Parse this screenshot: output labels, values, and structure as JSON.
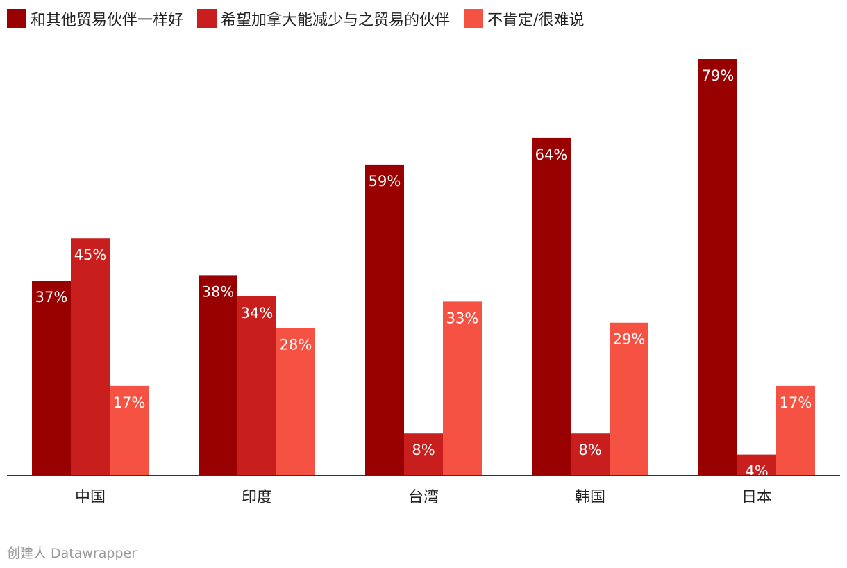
{
  "legend": [
    {
      "label": "和其他贸易伙伴一样好",
      "color": "#990000"
    },
    {
      "label": "希望加拿大能减少与之贸易的伙伴",
      "color": "#c81e1e"
    },
    {
      "label": "不肯定/很难说",
      "color": "#f55243"
    }
  ],
  "footer": {
    "credit": "创建人 Datawrapper"
  },
  "chart_data": {
    "type": "bar",
    "title": "",
    "xlabel": "",
    "ylabel": "",
    "ylim": [
      0,
      82
    ],
    "grid": false,
    "legend_position": "top-left",
    "categories": [
      "中国",
      "印度",
      "台湾",
      "韩国",
      "日本"
    ],
    "series": [
      {
        "name": "和其他贸易伙伴一样好",
        "color": "#990000",
        "values": [
          37,
          38,
          59,
          64,
          79
        ]
      },
      {
        "name": "希望加拿大能减少与之贸易的伙伴",
        "color": "#c81e1e",
        "values": [
          45,
          34,
          8,
          8,
          4
        ]
      },
      {
        "name": "不肯定/很难说",
        "color": "#f55243",
        "values": [
          17,
          28,
          33,
          29,
          17
        ]
      }
    ],
    "value_suffix": "%"
  }
}
